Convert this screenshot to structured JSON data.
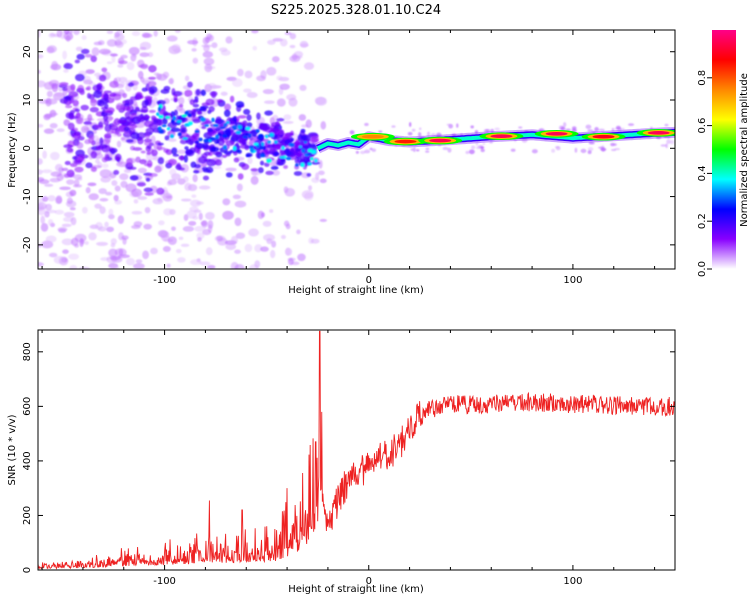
{
  "title": "S225.2025.328.01.10.C24",
  "colors": {
    "snr_line": "#ee2222",
    "frame": "#000000"
  },
  "chart_data": [
    {
      "type": "heatmap",
      "name": "spectrogram",
      "xlabel": "Height of straight line (km)",
      "ylabel": "Frequency (Hz)",
      "xlim": [
        -162,
        150
      ],
      "ylim": [
        -25,
        24.5
      ],
      "xticks": [
        -100,
        0,
        100
      ],
      "xtick_labels": [
        "-100",
        "0",
        "100"
      ],
      "yticks": [
        -20,
        -10,
        0,
        10,
        20
      ],
      "ytick_labels": [
        "-20",
        "-10",
        "0",
        "10",
        "20"
      ],
      "colorbar": {
        "label": "Normalized spectral amplitude",
        "range": [
          0,
          1
        ],
        "ticks": [
          0.0,
          0.2,
          0.4,
          0.6,
          0.8
        ],
        "tick_labels": [
          "0.0",
          "0.2",
          "0.4",
          "0.6",
          "0.8"
        ],
        "colormap": [
          "#ffffff",
          "#8800ff",
          "#0000ff",
          "#00ffff",
          "#00ff00",
          "#ffff00",
          "#ff8800",
          "#ff0000",
          "#ff0088"
        ]
      },
      "ridge": [
        {
          "x": -25,
          "f": 0.0
        },
        {
          "x": -20,
          "f": 1.0
        },
        {
          "x": -15,
          "f": 0.6
        },
        {
          "x": -10,
          "f": 1.2
        },
        {
          "x": -5,
          "f": 0.8
        },
        {
          "x": 0,
          "f": 2.4
        },
        {
          "x": 10,
          "f": 1.6
        },
        {
          "x": 20,
          "f": 1.3
        },
        {
          "x": 40,
          "f": 1.8
        },
        {
          "x": 60,
          "f": 2.4
        },
        {
          "x": 80,
          "f": 2.8
        },
        {
          "x": 100,
          "f": 2.1
        },
        {
          "x": 120,
          "f": 2.6
        },
        {
          "x": 140,
          "f": 3.1
        },
        {
          "x": 150,
          "f": 3.3
        }
      ],
      "ridge_peaks": [
        {
          "x": 2,
          "f": 2.4,
          "amp": 0.75
        },
        {
          "x": 18,
          "f": 1.4,
          "amp": 0.85
        },
        {
          "x": 35,
          "f": 1.6,
          "amp": 0.95
        },
        {
          "x": 65,
          "f": 2.5,
          "amp": 0.95
        },
        {
          "x": 92,
          "f": 3.0,
          "amp": 0.95
        },
        {
          "x": 115,
          "f": 2.4,
          "amp": 0.9
        },
        {
          "x": 142,
          "f": 3.2,
          "amp": 0.95
        }
      ]
    },
    {
      "type": "line",
      "name": "snr",
      "xlabel": "Height of straight line (km)",
      "ylabel": "SNR (10 * v/v)",
      "xlim": [
        -162,
        150
      ],
      "ylim": [
        0,
        880
      ],
      "xticks": [
        -100,
        0,
        100
      ],
      "xtick_labels": [
        "-100",
        "0",
        "100"
      ],
      "yticks": [
        0,
        200,
        400,
        600,
        800
      ],
      "ytick_labels": [
        "0",
        "200",
        "400",
        "600",
        "800"
      ],
      "trend": [
        {
          "x": -162,
          "y": 15
        },
        {
          "x": -140,
          "y": 25
        },
        {
          "x": -120,
          "y": 45
        },
        {
          "x": -100,
          "y": 60
        },
        {
          "x": -80,
          "y": 80
        },
        {
          "x": -60,
          "y": 95
        },
        {
          "x": -45,
          "y": 110
        },
        {
          "x": -35,
          "y": 200
        },
        {
          "x": -28,
          "y": 330
        },
        {
          "x": -23,
          "y": 300
        },
        {
          "x": -20,
          "y": 150
        },
        {
          "x": -15,
          "y": 260
        },
        {
          "x": -10,
          "y": 330
        },
        {
          "x": -5,
          "y": 360
        },
        {
          "x": 0,
          "y": 380
        },
        {
          "x": 5,
          "y": 430
        },
        {
          "x": 10,
          "y": 420
        },
        {
          "x": 15,
          "y": 460
        },
        {
          "x": 20,
          "y": 520
        },
        {
          "x": 25,
          "y": 560
        },
        {
          "x": 30,
          "y": 590
        },
        {
          "x": 40,
          "y": 605
        },
        {
          "x": 60,
          "y": 610
        },
        {
          "x": 80,
          "y": 615
        },
        {
          "x": 100,
          "y": 610
        },
        {
          "x": 120,
          "y": 605
        },
        {
          "x": 150,
          "y": 600
        }
      ],
      "peaks": [
        {
          "x": -24,
          "y": 875
        },
        {
          "x": -23,
          "y": 580
        },
        {
          "x": -26,
          "y": 470
        },
        {
          "x": -40,
          "y": 300
        },
        {
          "x": -78,
          "y": 255
        },
        {
          "x": -62,
          "y": 220
        }
      ]
    }
  ]
}
